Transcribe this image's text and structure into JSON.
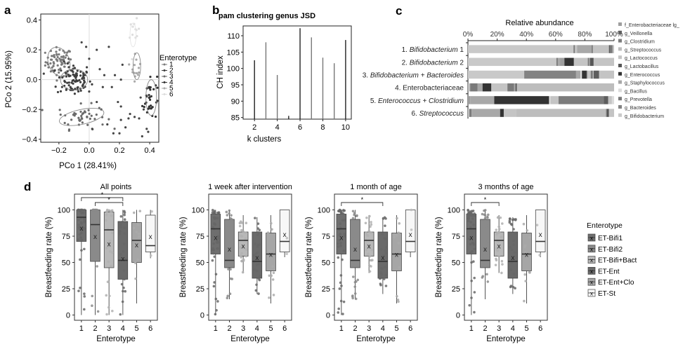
{
  "chart_data": [
    {
      "id": "a",
      "panel_label": "a",
      "type": "scatter",
      "title": "",
      "xlabel": "PCo 1 (28.41%)",
      "ylabel": "PCo 2 (15.95%)",
      "xlim": [
        -0.32,
        0.46
      ],
      "ylim": [
        -0.42,
        0.44
      ],
      "xticks": [
        -0.2,
        0.0,
        0.2,
        0.4
      ],
      "xtick_labels": [
        "−0.2",
        "0.0",
        "0.2",
        "0.4"
      ],
      "yticks": [
        -0.4,
        -0.2,
        0.0,
        0.2,
        0.4
      ],
      "ytick_labels": [
        "−0.4",
        "−0.2",
        "0.0",
        "0.2",
        "0.4"
      ],
      "legend_title": "Enterotype",
      "legend_position": "right",
      "series": [
        {
          "name": "1",
          "color": "#7a7a7a",
          "center": [
            -0.2,
            0.12
          ],
          "spread": [
            0.055,
            0.06
          ],
          "n": 70
        },
        {
          "name": "2",
          "color": "#3e3e3e",
          "center": [
            -0.1,
            0.0
          ],
          "spread": [
            0.07,
            0.07
          ],
          "n": 90
        },
        {
          "name": "3",
          "color": "#6a6a6a",
          "center": [
            -0.05,
            -0.25
          ],
          "spread": [
            0.1,
            0.05
          ],
          "n": 45
        },
        {
          "name": "4",
          "color": "#333333",
          "center": [
            0.4,
            -0.12
          ],
          "spread": [
            0.03,
            0.1
          ],
          "n": 35
        },
        {
          "name": "5",
          "color": "#aaaaaa",
          "center": [
            0.31,
            0.09
          ],
          "spread": [
            0.02,
            0.06
          ],
          "n": 15
        },
        {
          "name": "6",
          "color": "#dddddd",
          "center": [
            0.3,
            0.3
          ],
          "spread": [
            0.02,
            0.06
          ],
          "n": 12
        }
      ],
      "scattered_points": [
        [
          0.05,
          0.2
        ],
        [
          0.13,
          0.22
        ],
        [
          0.07,
          0.07
        ],
        [
          0.09,
          -0.05
        ],
        [
          0.1,
          0.03
        ],
        [
          0.19,
          -0.15
        ],
        [
          0.21,
          -0.18
        ],
        [
          0.21,
          -0.27
        ],
        [
          0.15,
          -0.05
        ],
        [
          0.22,
          0.1
        ],
        [
          0.27,
          -0.23
        ],
        [
          0.26,
          -0.26
        ],
        [
          0.3,
          -0.25
        ],
        [
          0.33,
          -0.26
        ],
        [
          0.35,
          -0.38
        ],
        [
          0.38,
          -0.33
        ],
        [
          0.39,
          -0.35
        ],
        [
          0.34,
          -0.12
        ],
        [
          0.36,
          -0.2
        ],
        [
          0.0,
          -0.08
        ],
        [
          0.05,
          -0.15
        ],
        [
          0.08,
          -0.2
        ],
        [
          0.12,
          -0.3
        ],
        [
          0.16,
          -0.36
        ],
        [
          0.2,
          -0.36
        ],
        [
          0.24,
          -0.32
        ],
        [
          0.02,
          -0.33
        ],
        [
          -0.05,
          0.25
        ],
        [
          -0.02,
          0.22
        ],
        [
          0.0,
          0.14
        ],
        [
          -0.3,
          0.04
        ],
        [
          0.17,
          0.03
        ],
        [
          0.21,
          0.0
        ]
      ],
      "ellipses": [
        {
          "series": "1",
          "center": [
            -0.2,
            0.12
          ],
          "radii": [
            0.07,
            0.1
          ],
          "angle": -20
        },
        {
          "series": "2",
          "center": [
            -0.1,
            0.0
          ],
          "radii": [
            0.09,
            0.07
          ],
          "angle": 0
        },
        {
          "series": "3",
          "center": [
            -0.05,
            -0.25
          ],
          "radii": [
            0.15,
            0.05
          ],
          "angle": -12
        },
        {
          "series": "4",
          "center": [
            0.41,
            -0.12
          ],
          "radii": [
            0.035,
            0.12
          ],
          "angle": 0
        },
        {
          "series": "5",
          "center": [
            0.315,
            0.09
          ],
          "radii": [
            0.025,
            0.09
          ],
          "angle": 0
        },
        {
          "series": "6",
          "center": [
            0.29,
            0.3
          ],
          "radii": [
            0.02,
            0.08
          ],
          "angle": 0
        }
      ]
    },
    {
      "id": "b",
      "panel_label": "b",
      "type": "bar",
      "title": "pam clustering genus JSD",
      "xlabel": "k clusters",
      "ylabel": "CH index",
      "categories": [
        2,
        3,
        4,
        5,
        6,
        7,
        8,
        9,
        10
      ],
      "values": [
        102.5,
        108,
        98,
        85.5,
        112.3,
        109.5,
        103.3,
        101.6,
        108.7
      ],
      "bar_colors": [
        "#222222",
        "#777777",
        "#777777",
        "#222222",
        "#222222",
        "#777777",
        "#777777",
        "#777777",
        "#222222"
      ],
      "xlim": [
        1,
        10.5
      ],
      "ylim": [
        84.5,
        113
      ],
      "xticks": [
        2,
        4,
        6,
        8,
        10
      ],
      "yticks": [
        85,
        90,
        95,
        100,
        105,
        110
      ]
    },
    {
      "id": "c",
      "panel_label": "c",
      "type": "bar",
      "orientation": "horizontal-stacked",
      "title": "Relative abundance",
      "xticks": [
        "0%",
        "20%",
        "40%",
        "60%",
        "80%",
        "100%"
      ],
      "categories": [
        {
          "num": "1.",
          "name": "Bifidobacterium",
          "italic": true,
          "suffix": " 1"
        },
        {
          "num": "2.",
          "name": "Bifidobacterium",
          "italic": true,
          "suffix": " 2"
        },
        {
          "num": "3.",
          "name": "Bifidobacterium + Bacteroides",
          "italic": true,
          "suffix": ""
        },
        {
          "num": "4.",
          "name": "Enterobacteriaceae",
          "italic": false,
          "suffix": ""
        },
        {
          "num": "5.",
          "name": "Enterococcus + Clostridium",
          "italic": true,
          "suffix": ""
        },
        {
          "num": "6.",
          "name": "Streptococcus",
          "italic": true,
          "suffix": ""
        }
      ],
      "legend": [
        {
          "name": "f_Enterobacteriaceae lg_",
          "color": "#9e9e9e"
        },
        {
          "name": "g_Veillonella",
          "color": "#5e5e5e"
        },
        {
          "name": "g_Clostridium",
          "color": "#7c7c7c"
        },
        {
          "name": "g_Streptococcus",
          "color": "#bdbdbd"
        },
        {
          "name": "g_Lactococcus",
          "color": "#c4c4c4"
        },
        {
          "name": "g_Lactobacillus",
          "color": "#565656"
        },
        {
          "name": "g_Enterococcus",
          "color": "#333333"
        },
        {
          "name": "g_Staphylococcus",
          "color": "#a8a8a8"
        },
        {
          "name": "g_Bacillus",
          "color": "#dcdcdc"
        },
        {
          "name": "g_Prevotella",
          "color": "#7a7a7a"
        },
        {
          "name": "g_Bacteroides",
          "color": "#838383"
        },
        {
          "name": "g_Bifidobacterium",
          "color": "#c9c9c9"
        }
      ],
      "series_segments": [
        [
          [
            "#c9c9c9",
            71.5
          ],
          [
            "#7a7a7a",
            1
          ],
          [
            "#c4c4c4",
            1.5
          ],
          [
            "#a8a8a8",
            10
          ],
          [
            "#565656",
            0.5
          ],
          [
            "#c4c4c4",
            11
          ],
          [
            "#5e5e5e",
            1
          ],
          [
            "#7c7c7c",
            1.5
          ],
          [
            "#c4c4c4",
            1
          ]
        ],
        [
          [
            "#c9c9c9",
            60.5
          ],
          [
            "#7a7a7a",
            1
          ],
          [
            "#a8a8a8",
            1.5
          ],
          [
            "#9e9e9e",
            3
          ],
          [
            "#333333",
            6.5
          ],
          [
            "#c4c4c4",
            9.5
          ],
          [
            "#7a7a7a",
            1
          ],
          [
            "#a8a8a8",
            0.5
          ],
          [
            "#565656",
            2.5
          ],
          [
            "#c4c4c4",
            14
          ]
        ],
        [
          [
            "#c9c9c9",
            38.5
          ],
          [
            "#838383",
            35.5
          ],
          [
            "#a8a8a8",
            3
          ],
          [
            "#dcdcdc",
            1
          ],
          [
            "#333333",
            3
          ],
          [
            "#565656",
            0.5
          ],
          [
            "#c4c4c4",
            2.5
          ],
          [
            "#7a7a7a",
            1.5
          ],
          [
            "#c4c4c4",
            0.5
          ],
          [
            "#5e5e5e",
            3.5
          ],
          [
            "#838383",
            0.5
          ],
          [
            "#c4c4c4",
            10
          ]
        ],
        [
          [
            "#bdbdbd",
            1.5
          ],
          [
            "#7a7a7a",
            5
          ],
          [
            "#a8a8a8",
            3.5
          ],
          [
            "#333333",
            6
          ],
          [
            "#c4c4c4",
            11
          ],
          [
            "#7a7a7a",
            4.5
          ],
          [
            "#a8a8a8",
            1
          ],
          [
            "#565656",
            1
          ],
          [
            "#bdbdbd",
            66.5
          ]
        ],
        [
          [
            "#9e9e9e",
            1.5
          ],
          [
            "#a8a8a8",
            16.5
          ],
          [
            "#333333",
            37.5
          ],
          [
            "#dcdcdc",
            1
          ],
          [
            "#c4c4c4",
            5.5
          ],
          [
            "#7c7c7c",
            31
          ],
          [
            "#5e5e5e",
            3
          ],
          [
            "#c4c4c4",
            2.5
          ],
          [
            "#dcdcdc",
            1.5
          ]
        ],
        [
          [
            "#bdbdbd",
            1
          ],
          [
            "#7a7a7a",
            1.5
          ],
          [
            "#a8a8a8",
            19.5
          ],
          [
            "#333333",
            2.5
          ],
          [
            "#c4c4c4",
            8.5
          ],
          [
            "#bdbdbd",
            61.5
          ],
          [
            "#7a7a7a",
            0.5
          ],
          [
            "#565656",
            1.5
          ],
          [
            "#c4c4c4",
            3.5
          ]
        ]
      ]
    },
    {
      "id": "d1",
      "panel_label": "d",
      "type": "box",
      "title": "All points",
      "xlabel": "Enterotype",
      "ylabel": "Breastfeeding rate (%)",
      "ylim": [
        -5,
        115
      ],
      "yticks": [
        0,
        25,
        50,
        75,
        100
      ],
      "categories": [
        "1",
        "2",
        "3",
        "4",
        "5",
        "6"
      ],
      "boxes": [
        {
          "q1": 70,
          "median": 93,
          "q3": 100,
          "whisker_low": 0,
          "whisker_high": 100,
          "mean": 83
        },
        {
          "q1": 51,
          "median": 86,
          "q3": 100,
          "whisker_low": 0,
          "whisker_high": 100,
          "mean": 75
        },
        {
          "q1": 45,
          "median": 81,
          "q3": 98,
          "whisker_low": 0,
          "whisker_high": 100,
          "mean": 68
        },
        {
          "q1": 34,
          "median": 52,
          "q3": 89,
          "whisker_low": 0,
          "whisker_high": 100,
          "mean": 54
        },
        {
          "q1": 50,
          "median": 71,
          "q3": 88,
          "whisker_low": 11,
          "whisker_high": 100,
          "mean": 67
        },
        {
          "q1": 60,
          "median": 66,
          "q3": 95,
          "whisker_low": 54,
          "whisker_high": 100,
          "mean": 75
        }
      ],
      "significance": [
        {
          "from": "1",
          "to": "4",
          "label": "*",
          "level": 1
        },
        {
          "from": "2",
          "to": "4",
          "label": "*",
          "level": 0
        }
      ]
    },
    {
      "id": "d2",
      "type": "box",
      "title": "1 week after intervention",
      "xlabel": "Enterotype",
      "ylabel": "Breastfeeding rate (%)",
      "ylim": [
        -5,
        115
      ],
      "yticks": [
        0,
        25,
        50,
        75,
        100
      ],
      "categories": [
        "1",
        "2",
        "3",
        "4",
        "5",
        "6"
      ],
      "boxes": [
        {
          "q1": 58,
          "median": 82,
          "q3": 96,
          "whisker_low": 0,
          "whisker_high": 100,
          "mean": 74
        },
        {
          "q1": 45,
          "median": 52,
          "q3": 91,
          "whisker_low": 15,
          "whisker_high": 100,
          "mean": 63
        },
        {
          "q1": 56,
          "median": 71,
          "q3": 79,
          "whisker_low": 40,
          "whisker_high": 95,
          "mean": 66
        },
        {
          "q1": 35,
          "median": 51,
          "q3": 79,
          "whisker_low": 20,
          "whisker_high": 93,
          "mean": 55
        },
        {
          "q1": 42,
          "median": 58,
          "q3": 78,
          "whisker_low": 11,
          "whisker_high": 95,
          "mean": 58
        },
        {
          "q1": 60,
          "median": 70,
          "q3": 100,
          "whisker_low": 55,
          "whisker_high": 100,
          "mean": 77
        }
      ],
      "significance": []
    },
    {
      "id": "d3",
      "type": "box",
      "title": "1 month of age",
      "xlabel": "Enterotype",
      "ylabel": "Breastfeeding rate (%)",
      "ylim": [
        -5,
        115
      ],
      "yticks": [
        0,
        25,
        50,
        75,
        100
      ],
      "categories": [
        "1",
        "2",
        "3",
        "4",
        "5",
        "6"
      ],
      "boxes": [
        {
          "q1": 58,
          "median": 82,
          "q3": 96,
          "whisker_low": 0,
          "whisker_high": 100,
          "mean": 74
        },
        {
          "q1": 45,
          "median": 52,
          "q3": 91,
          "whisker_low": 15,
          "whisker_high": 100,
          "mean": 63
        },
        {
          "q1": 56,
          "median": 71,
          "q3": 79,
          "whisker_low": 40,
          "whisker_high": 95,
          "mean": 66
        },
        {
          "q1": 35,
          "median": 51,
          "q3": 79,
          "whisker_low": 20,
          "whisker_high": 93,
          "mean": 55
        },
        {
          "q1": 42,
          "median": 58,
          "q3": 78,
          "whisker_low": 11,
          "whisker_high": 95,
          "mean": 58
        },
        {
          "q1": 60,
          "median": 70,
          "q3": 100,
          "whisker_low": 55,
          "whisker_high": 100,
          "mean": 77
        }
      ],
      "significance": [
        {
          "from": "1",
          "to": "4",
          "label": "*",
          "level": 0
        }
      ]
    },
    {
      "id": "d4",
      "type": "box",
      "title": "3 months of age",
      "xlabel": "Enterotype",
      "ylabel": "Breastfeeding rate (%)",
      "ylim": [
        -5,
        115
      ],
      "yticks": [
        0,
        25,
        50,
        75,
        100
      ],
      "categories": [
        "1",
        "2",
        "3",
        "4",
        "5",
        "6"
      ],
      "boxes": [
        {
          "q1": 58,
          "median": 82,
          "q3": 96,
          "whisker_low": 0,
          "whisker_high": 100,
          "mean": 74
        },
        {
          "q1": 45,
          "median": 52,
          "q3": 91,
          "whisker_low": 15,
          "whisker_high": 100,
          "mean": 63
        },
        {
          "q1": 56,
          "median": 71,
          "q3": 79,
          "whisker_low": 40,
          "whisker_high": 95,
          "mean": 66
        },
        {
          "q1": 35,
          "median": 51,
          "q3": 79,
          "whisker_low": 20,
          "whisker_high": 93,
          "mean": 55
        },
        {
          "q1": 42,
          "median": 58,
          "q3": 78,
          "whisker_low": 11,
          "whisker_high": 95,
          "mean": 58
        },
        {
          "q1": 60,
          "median": 70,
          "q3": 100,
          "whisker_low": 55,
          "whisker_high": 100,
          "mean": 77
        }
      ],
      "significance": [
        {
          "from": "1",
          "to": "3",
          "label": "*",
          "level": 0
        }
      ]
    }
  ],
  "box_legend": {
    "title": "Enterotype",
    "items": [
      {
        "name": "ET-Bifi1",
        "color": "#6e6e6e"
      },
      {
        "name": "ET-Bifi2",
        "color": "#8a8a8a"
      },
      {
        "name": "ET-Bifi+Bact",
        "color": "#b8b8b8"
      },
      {
        "name": "ET-Ent",
        "color": "#6a6a6a"
      },
      {
        "name": "ET-Ent+Clo",
        "color": "#a6a6a6"
      },
      {
        "name": "ET-St",
        "color": "#f7f7f7"
      }
    ],
    "mean_marker": "x"
  }
}
